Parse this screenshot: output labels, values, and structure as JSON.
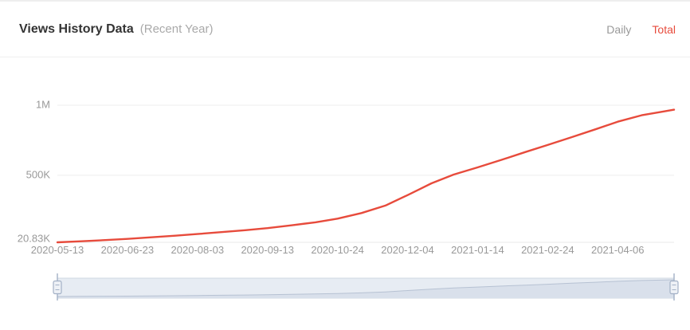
{
  "header": {
    "title": "Views History Data",
    "subtitle": "(Recent Year)",
    "tabs": [
      {
        "label": "Daily",
        "active": false
      },
      {
        "label": "Total",
        "active": true
      }
    ]
  },
  "colors": {
    "accent": "#e74b3c",
    "line": "#e74b3c",
    "title_text": "#333333",
    "muted_text": "#999999",
    "gridline": "#eeeeee",
    "axis_line": "#e9e9e9",
    "slider_track": "#e7ecf3",
    "slider_shadow_fill": "#d9e0eb",
    "slider_shadow_line": "#b7c2d3",
    "slider_border": "#cfd7e2",
    "slider_handle": "#a3b1c6",
    "slider_handle_fill": "#eef1f6"
  },
  "icons": {
    "slider_left_handle": "grip-handle-icon",
    "slider_right_handle": "grip-handle-icon"
  },
  "chart_data": {
    "type": "line",
    "title": "Views History Data (Recent Year)",
    "legend": false,
    "grid": true,
    "x_range": [
      "2020-05-13",
      "2021-05-09"
    ],
    "x_ticks": [
      "2020-05-13",
      "2020-06-23",
      "2020-08-03",
      "2020-09-13",
      "2020-10-24",
      "2020-12-04",
      "2021-01-14",
      "2021-02-24",
      "2021-04-06"
    ],
    "y_axis": {
      "min_value": 20830,
      "top_value": 1000000,
      "ticks": [
        {
          "label": "1M",
          "value": 1000000,
          "gridline": true
        },
        {
          "label": "500K",
          "value": 500000,
          "gridline": true
        },
        {
          "label": "20.83K",
          "value": 20830,
          "gridline": false
        }
      ]
    },
    "points": [
      {
        "date": "2020-05-13",
        "value": 20830
      },
      {
        "date": "2020-05-27",
        "value": 28500
      },
      {
        "date": "2020-06-10",
        "value": 37000
      },
      {
        "date": "2020-06-23",
        "value": 45500
      },
      {
        "date": "2020-07-07",
        "value": 56500
      },
      {
        "date": "2020-07-21",
        "value": 68000
      },
      {
        "date": "2020-08-03",
        "value": 80000
      },
      {
        "date": "2020-08-17",
        "value": 93500
      },
      {
        "date": "2020-08-31",
        "value": 107500
      },
      {
        "date": "2020-09-13",
        "value": 122000
      },
      {
        "date": "2020-09-27",
        "value": 142000
      },
      {
        "date": "2020-10-11",
        "value": 164000
      },
      {
        "date": "2020-10-24",
        "value": 190000
      },
      {
        "date": "2020-11-07",
        "value": 230000
      },
      {
        "date": "2020-11-21",
        "value": 283000
      },
      {
        "date": "2020-12-04",
        "value": 358000
      },
      {
        "date": "2020-12-11",
        "value": 400000
      },
      {
        "date": "2020-12-18",
        "value": 442000
      },
      {
        "date": "2020-12-31",
        "value": 505000
      },
      {
        "date": "2021-01-14",
        "value": 556000
      },
      {
        "date": "2021-01-28",
        "value": 610000
      },
      {
        "date": "2021-02-11",
        "value": 666000
      },
      {
        "date": "2021-02-24",
        "value": 716000
      },
      {
        "date": "2021-03-10",
        "value": 772000
      },
      {
        "date": "2021-03-24",
        "value": 828000
      },
      {
        "date": "2021-04-06",
        "value": 882000
      },
      {
        "date": "2021-04-20",
        "value": 928000
      },
      {
        "date": "2021-05-04",
        "value": 958000
      },
      {
        "date": "2021-05-09",
        "value": 968000
      }
    ]
  }
}
